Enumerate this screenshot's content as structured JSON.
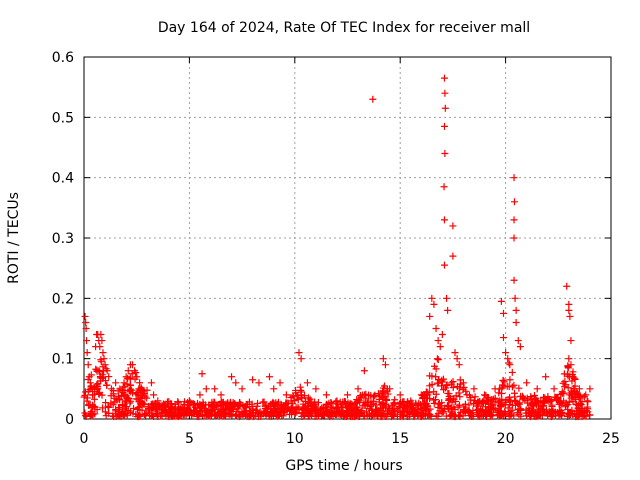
{
  "chart_data": {
    "type": "scatter",
    "title": "Day 164 of 2024, Rate Of TEC Index for receiver mall",
    "xlabel": "GPS time / hours",
    "ylabel": "ROTI / TECUs",
    "xlim": [
      0,
      25
    ],
    "ylim": [
      0,
      0.6
    ],
    "xticks": [
      0,
      5,
      10,
      15,
      20,
      25
    ],
    "xtick_labels": [
      "0",
      "5",
      "10",
      "15",
      "20",
      "25"
    ],
    "yticks": [
      0,
      0.1,
      0.2,
      0.3,
      0.4,
      0.5,
      0.6
    ],
    "ytick_labels": [
      "0",
      "0.1",
      "0.2",
      "0.3",
      "0.4",
      "0.5",
      "0.6"
    ],
    "grid": true,
    "marker": "+",
    "series": [
      {
        "name": "ROTI",
        "color": "#ff0000",
        "points": [
          [
            0.05,
            0.17
          ],
          [
            0.08,
            0.16
          ],
          [
            0.1,
            0.15
          ],
          [
            0.12,
            0.13
          ],
          [
            0.15,
            0.11
          ],
          [
            0.2,
            0.09
          ],
          [
            0.25,
            0.07
          ],
          [
            0.3,
            0.06
          ],
          [
            0.4,
            0.05
          ],
          [
            0.55,
            0.12
          ],
          [
            0.6,
            0.14
          ],
          [
            0.65,
            0.14
          ],
          [
            0.7,
            0.13
          ],
          [
            0.75,
            0.12
          ],
          [
            0.8,
            0.14
          ],
          [
            0.85,
            0.13
          ],
          [
            0.9,
            0.11
          ],
          [
            0.95,
            0.1
          ],
          [
            1.0,
            0.09
          ],
          [
            1.1,
            0.08
          ],
          [
            1.3,
            0.05
          ],
          [
            1.5,
            0.06
          ],
          [
            1.7,
            0.05
          ],
          [
            1.9,
            0.06
          ],
          [
            2.0,
            0.07
          ],
          [
            2.1,
            0.08
          ],
          [
            2.2,
            0.09
          ],
          [
            2.3,
            0.09
          ],
          [
            2.4,
            0.08
          ],
          [
            2.5,
            0.07
          ],
          [
            2.6,
            0.05
          ],
          [
            3.2,
            0.06
          ],
          [
            3.3,
            0.04
          ],
          [
            3.5,
            0.03
          ],
          [
            4.0,
            0.02
          ],
          [
            4.5,
            0.02
          ],
          [
            5.0,
            0.03
          ],
          [
            5.5,
            0.04
          ],
          [
            5.6,
            0.075
          ],
          [
            5.8,
            0.05
          ],
          [
            6.2,
            0.05
          ],
          [
            6.5,
            0.04
          ],
          [
            7.0,
            0.07
          ],
          [
            7.2,
            0.06
          ],
          [
            7.5,
            0.05
          ],
          [
            8.0,
            0.065
          ],
          [
            8.3,
            0.06
          ],
          [
            8.8,
            0.07
          ],
          [
            9.0,
            0.05
          ],
          [
            9.3,
            0.06
          ],
          [
            9.6,
            0.04
          ],
          [
            10.2,
            0.11
          ],
          [
            10.3,
            0.1
          ],
          [
            10.6,
            0.06
          ],
          [
            11.0,
            0.05
          ],
          [
            11.5,
            0.04
          ],
          [
            12.0,
            0.03
          ],
          [
            12.5,
            0.04
          ],
          [
            13.0,
            0.05
          ],
          [
            13.3,
            0.08
          ],
          [
            13.7,
            0.53
          ],
          [
            14.2,
            0.1
          ],
          [
            14.3,
            0.09
          ],
          [
            14.5,
            0.05
          ],
          [
            15.0,
            0.04
          ],
          [
            15.5,
            0.03
          ],
          [
            16.0,
            0.04
          ],
          [
            16.4,
            0.17
          ],
          [
            16.5,
            0.2
          ],
          [
            16.6,
            0.19
          ],
          [
            16.7,
            0.15
          ],
          [
            16.8,
            0.13
          ],
          [
            16.9,
            0.12
          ],
          [
            17.0,
            0.14
          ],
          [
            17.1,
            0.565
          ],
          [
            17.12,
            0.54
          ],
          [
            17.14,
            0.515
          ],
          [
            17.1,
            0.485
          ],
          [
            17.12,
            0.44
          ],
          [
            17.08,
            0.385
          ],
          [
            17.1,
            0.33
          ],
          [
            17.1,
            0.255
          ],
          [
            17.2,
            0.2
          ],
          [
            17.25,
            0.18
          ],
          [
            17.5,
            0.32
          ],
          [
            17.5,
            0.27
          ],
          [
            17.6,
            0.11
          ],
          [
            17.7,
            0.1
          ],
          [
            17.8,
            0.09
          ],
          [
            18.0,
            0.06
          ],
          [
            18.5,
            0.05
          ],
          [
            19.0,
            0.04
          ],
          [
            19.5,
            0.05
          ],
          [
            19.8,
            0.195
          ],
          [
            19.9,
            0.175
          ],
          [
            19.9,
            0.135
          ],
          [
            20.0,
            0.11
          ],
          [
            20.1,
            0.1
          ],
          [
            20.2,
            0.09
          ],
          [
            20.4,
            0.4
          ],
          [
            20.42,
            0.36
          ],
          [
            20.4,
            0.33
          ],
          [
            20.4,
            0.3
          ],
          [
            20.4,
            0.23
          ],
          [
            20.45,
            0.2
          ],
          [
            20.5,
            0.18
          ],
          [
            20.5,
            0.16
          ],
          [
            20.6,
            0.13
          ],
          [
            20.7,
            0.12
          ],
          [
            21.0,
            0.06
          ],
          [
            21.5,
            0.05
          ],
          [
            21.9,
            0.07
          ],
          [
            22.3,
            0.05
          ],
          [
            22.9,
            0.22
          ],
          [
            23.0,
            0.19
          ],
          [
            23.0,
            0.18
          ],
          [
            23.05,
            0.17
          ],
          [
            23.1,
            0.13
          ],
          [
            23.0,
            0.1
          ],
          [
            23.1,
            0.09
          ],
          [
            23.2,
            0.07
          ],
          [
            23.5,
            0.05
          ],
          [
            23.8,
            0.04
          ],
          [
            24.0,
            0.05
          ]
        ]
      }
    ]
  }
}
